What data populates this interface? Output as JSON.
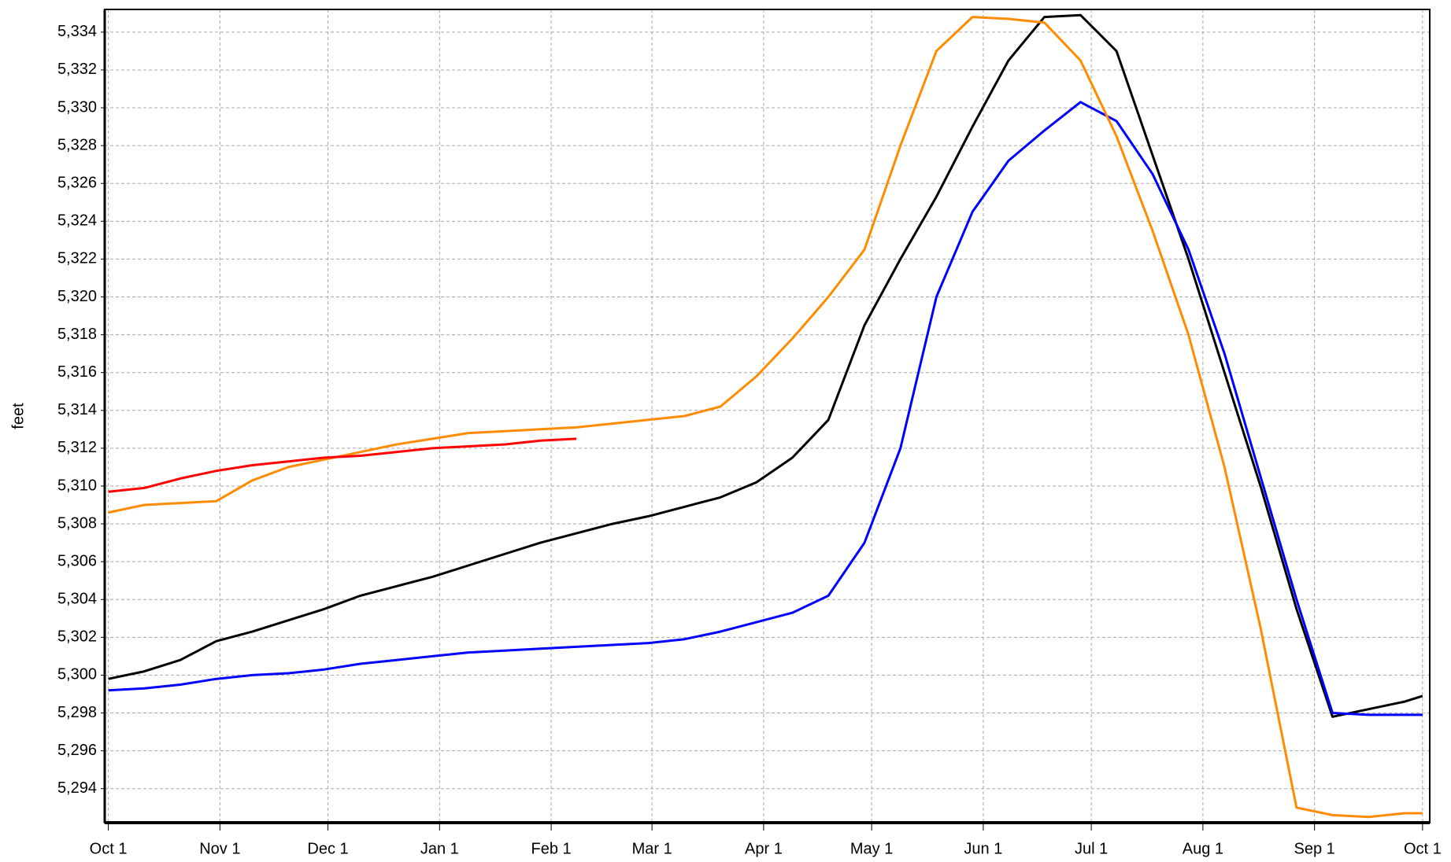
{
  "chart_data": {
    "type": "line",
    "y_label": "feet",
    "x": [
      0,
      10,
      20,
      30,
      40,
      50,
      60,
      70,
      80,
      90,
      100,
      110,
      120,
      130,
      140,
      150,
      160,
      170,
      180,
      190,
      200,
      210,
      220,
      230,
      240,
      250,
      260,
      270,
      280,
      290,
      300,
      310,
      320,
      330,
      340,
      350,
      360,
      365
    ],
    "xlim": [
      -1,
      367
    ],
    "xticks": [
      {
        "value": 0,
        "label": "Oct 1"
      },
      {
        "value": 31,
        "label": "Nov 1"
      },
      {
        "value": 61,
        "label": "Dec 1"
      },
      {
        "value": 92,
        "label": "Jan 1"
      },
      {
        "value": 123,
        "label": "Feb 1"
      },
      {
        "value": 151,
        "label": "Mar 1"
      },
      {
        "value": 182,
        "label": "Apr 1"
      },
      {
        "value": 212,
        "label": "May 1"
      },
      {
        "value": 243,
        "label": "Jun 1"
      },
      {
        "value": 273,
        "label": "Jul 1"
      },
      {
        "value": 304,
        "label": "Aug 1"
      },
      {
        "value": 335,
        "label": "Sep 1"
      },
      {
        "value": 365,
        "label": "Oct 1"
      }
    ],
    "ylim": [
      5292.2,
      5335.2
    ],
    "yticks": [
      {
        "value": 5294,
        "label": "5,294"
      },
      {
        "value": 5296,
        "label": "5,296"
      },
      {
        "value": 5298,
        "label": "5,298"
      },
      {
        "value": 5300,
        "label": "5,300"
      },
      {
        "value": 5302,
        "label": "5,302"
      },
      {
        "value": 5304,
        "label": "5,304"
      },
      {
        "value": 5306,
        "label": "5,306"
      },
      {
        "value": 5308,
        "label": "5,308"
      },
      {
        "value": 5310,
        "label": "5,310"
      },
      {
        "value": 5312,
        "label": "5,312"
      },
      {
        "value": 5314,
        "label": "5,314"
      },
      {
        "value": 5316,
        "label": "5,316"
      },
      {
        "value": 5318,
        "label": "5,318"
      },
      {
        "value": 5320,
        "label": "5,320"
      },
      {
        "value": 5322,
        "label": "5,322"
      },
      {
        "value": 5324,
        "label": "5,324"
      },
      {
        "value": 5326,
        "label": "5,326"
      },
      {
        "value": 5328,
        "label": "5,328"
      },
      {
        "value": 5330,
        "label": "5,330"
      },
      {
        "value": 5332,
        "label": "5,332"
      },
      {
        "value": 5334,
        "label": "5,334"
      }
    ],
    "grid": true,
    "series": [
      {
        "color": "#000000",
        "values": [
          5299.8,
          5300.2,
          5300.8,
          5301.8,
          5302.3,
          5302.9,
          5303.5,
          5304.2,
          5304.7,
          5305.2,
          5305.8,
          5306.4,
          5307.0,
          5307.5,
          5308.0,
          5308.4,
          5308.9,
          5309.4,
          5310.2,
          5311.5,
          5313.5,
          5318.5,
          5322.0,
          5325.3,
          5329.0,
          5332.5,
          5334.8,
          5334.9,
          5333.0,
          5327.5,
          5322.0,
          5316.0,
          5310.0,
          5303.5,
          5297.8,
          5298.2,
          5298.6,
          5298.9
        ]
      },
      {
        "color": "#0000ff",
        "values": [
          5299.2,
          5299.3,
          5299.5,
          5299.8,
          5300.0,
          5300.1,
          5300.3,
          5300.6,
          5300.8,
          5301.0,
          5301.2,
          5301.3,
          5301.4,
          5301.5,
          5301.6,
          5301.7,
          5301.9,
          5302.3,
          5302.8,
          5303.3,
          5304.2,
          5307.0,
          5312.0,
          5320.0,
          5324.5,
          5327.2,
          5328.8,
          5330.3,
          5329.3,
          5326.5,
          5322.5,
          5317.0,
          5310.5,
          5304.0,
          5298.0,
          5297.9,
          5297.9,
          5297.9
        ]
      },
      {
        "color": "#ff8c00",
        "values": [
          5308.6,
          5309.0,
          5309.1,
          5309.2,
          5310.3,
          5311.0,
          5311.4,
          5311.8,
          5312.2,
          5312.5,
          5312.8,
          5312.9,
          5313.0,
          5313.1,
          5313.3,
          5313.5,
          5313.7,
          5314.2,
          5315.8,
          5317.8,
          5320.0,
          5322.5,
          5328.0,
          5333.0,
          5334.8,
          5334.7,
          5334.5,
          5332.5,
          5328.5,
          5323.5,
          5318.0,
          5311.0,
          5302.5,
          5293.0,
          5292.6,
          5292.5,
          5292.7,
          5292.7
        ]
      },
      {
        "color": "#ff0000",
        "values": [
          5309.7,
          5309.9,
          5310.4,
          5310.8,
          5311.1,
          5311.3,
          5311.5,
          5311.6,
          5311.8,
          5312.0,
          5312.1,
          5312.2,
          5312.4,
          5312.5,
          null,
          null,
          null,
          null,
          null,
          null,
          null,
          null,
          null,
          null,
          null,
          null,
          null,
          null,
          null,
          null,
          null,
          null,
          null,
          null,
          null,
          null,
          null,
          null
        ]
      }
    ]
  }
}
